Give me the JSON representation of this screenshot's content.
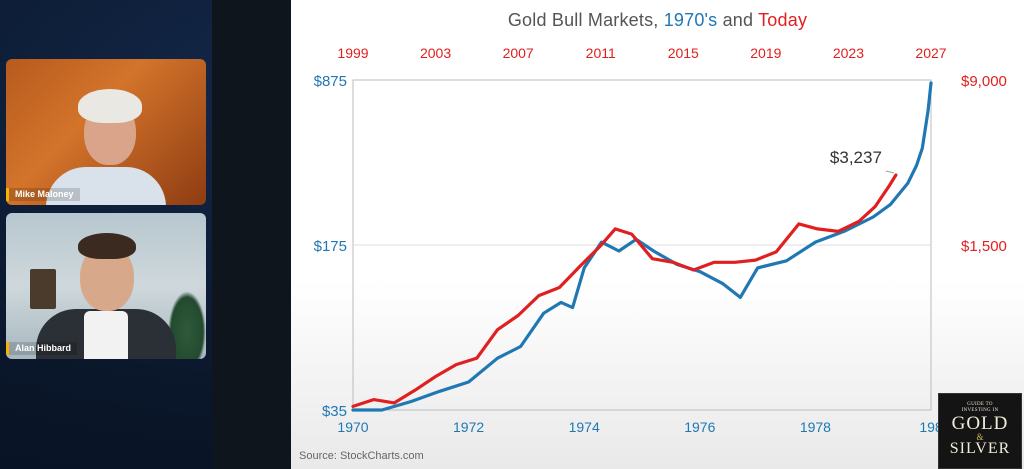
{
  "participants": [
    {
      "name": "Mike Maloney"
    },
    {
      "name": "Alan Hibbard"
    }
  ],
  "source_note": "Source: StockCharts.com",
  "logo": {
    "line1": "GUIDE TO",
    "line2": "INVESTING IN",
    "gold": "GOLD",
    "amp": "&",
    "silver": "SILVER"
  },
  "colors": {
    "blue_series": "#1f77b4",
    "red_series": "#e02020",
    "panel_bg": "#0b1a30"
  },
  "chart_data": {
    "type": "line",
    "title": {
      "part1": "Gold Bull Markets, ",
      "part2": "1970's",
      "part3": " and ",
      "part4": "Today"
    },
    "x_bottom": {
      "ticks": [
        "1970",
        "1972",
        "1974",
        "1976",
        "1978",
        "198"
      ],
      "range": [
        1970,
        1980
      ]
    },
    "x_top": {
      "ticks": [
        "1999",
        "2003",
        "2007",
        "2011",
        "2015",
        "2019",
        "2023",
        "2027"
      ],
      "range": [
        1999,
        2027
      ]
    },
    "y_left": {
      "ticks": [
        "$35",
        "$175",
        "$875"
      ],
      "scale": "log",
      "range": [
        35,
        875
      ]
    },
    "y_right": {
      "ticks": [
        "$1,500",
        "$9,000"
      ],
      "scale": "log"
    },
    "grid": "horizontal",
    "annotation": "$3,237",
    "series": [
      {
        "name": "1970's",
        "axis": "bottom-left",
        "x": [
          1970.0,
          1970.5,
          1971.0,
          1971.5,
          1972.0,
          1972.5,
          1972.9,
          1973.3,
          1973.6,
          1973.8,
          1974.0,
          1974.3,
          1974.6,
          1974.9,
          1975.2,
          1975.6,
          1976.0,
          1976.4,
          1976.7,
          1977.0,
          1977.5,
          1978.0,
          1978.5,
          1979.0,
          1979.3,
          1979.6,
          1979.75,
          1979.85,
          1979.95,
          1980.0
        ],
        "y": [
          35,
          35,
          38,
          42,
          46,
          58,
          65,
          90,
          100,
          95,
          140,
          180,
          165,
          185,
          165,
          145,
          135,
          120,
          105,
          140,
          150,
          180,
          200,
          230,
          260,
          320,
          380,
          450,
          650,
          850
        ]
      },
      {
        "name": "Today",
        "axis": "top-right",
        "x": [
          1999.0,
          2000.0,
          2001.0,
          2002.0,
          2003.0,
          2004.0,
          2005.0,
          2006.0,
          2007.0,
          2008.0,
          2009.0,
          2010.0,
          2011.0,
          2011.7,
          2012.5,
          2013.5,
          2014.5,
          2015.5,
          2016.5,
          2017.5,
          2018.5,
          2019.5,
          2020.6,
          2021.5,
          2022.5,
          2023.5,
          2024.3,
          2025.0,
          2025.3
        ],
        "y": [
          260,
          280,
          270,
          310,
          360,
          410,
          440,
          600,
          700,
          870,
          950,
          1200,
          1500,
          1800,
          1700,
          1300,
          1250,
          1150,
          1250,
          1250,
          1280,
          1400,
          1900,
          1800,
          1750,
          1950,
          2300,
          2900,
          3237
        ]
      }
    ]
  }
}
